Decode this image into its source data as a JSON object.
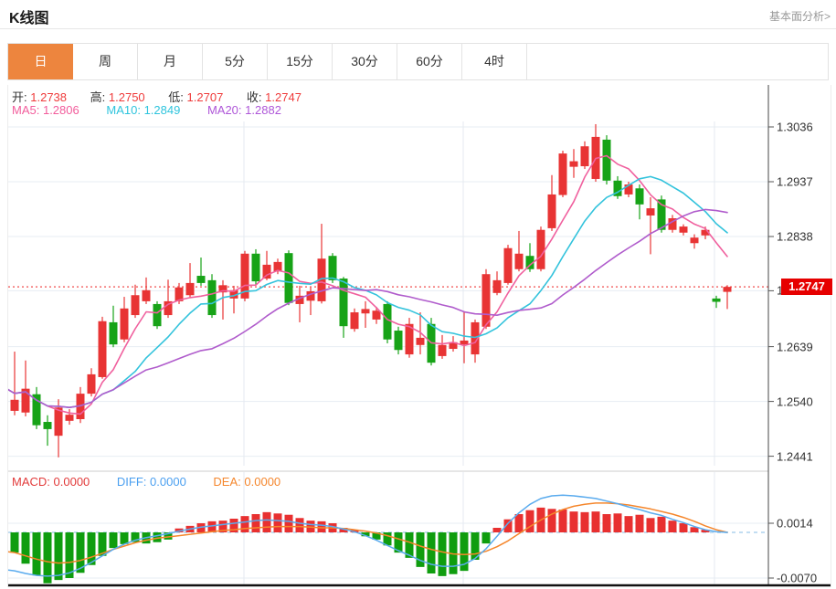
{
  "header": {
    "title": "K线图",
    "link": "基本面分析>"
  },
  "tabs": {
    "items": [
      "日",
      "周",
      "月",
      "5分",
      "15分",
      "30分",
      "60分",
      "4时"
    ],
    "active_index": 0
  },
  "readout": {
    "open_label": "开:",
    "open": "1.2738",
    "high_label": "高:",
    "high": "1.2750",
    "low_label": "低:",
    "low": "1.2707",
    "close_label": "收:",
    "close": "1.2747",
    "ma5_label": "MA5:",
    "ma5": "1.2806",
    "ma10_label": "MA10:",
    "ma10": "1.2849",
    "ma20_label": "MA20:",
    "ma20": "1.2882"
  },
  "macd_readout": {
    "macd_label": "MACD:",
    "macd": "0.0000",
    "diff_label": "DIFF:",
    "diff": "0.0000",
    "dea_label": "DEA:",
    "dea": "0.0000"
  },
  "axis": {
    "main_ticks": [
      {
        "label": "1.3036",
        "value": 1.3036
      },
      {
        "label": "1.2937",
        "value": 1.2937
      },
      {
        "label": "1.2838",
        "value": 1.2838
      },
      {
        "label": "1.2740",
        "value": 1.274
      },
      {
        "label": "1.2639",
        "value": 1.2639
      },
      {
        "label": "1.2540",
        "value": 1.254
      },
      {
        "label": "1.2441",
        "value": 1.2441
      }
    ],
    "macd_ticks": [
      {
        "label": "0.0014",
        "value": 0.0014
      },
      {
        "label": "-0.0070",
        "value": -0.007
      }
    ],
    "last_price": {
      "label": "1.2747",
      "value": 1.2747
    }
  },
  "colors": {
    "up": "#e83434",
    "down": "#17a317",
    "ma5": "#f0609e",
    "ma10": "#33c3dc",
    "ma20": "#b05ccc",
    "grid": "#e7edf3",
    "grid_vert": "#e4e9f0",
    "price_line": "#f26a6a",
    "badge": "#e60000",
    "hist_up": "#e83030",
    "hist_down": "#0f9d0f",
    "diff_line": "#5aabee",
    "dea_line": "#f5862b",
    "zero_dash": "#aed2ee",
    "axis_line": "#444",
    "bottom_line": "#111",
    "tab_active": "#ED853E"
  },
  "chart_data": {
    "type": "candlestick+macd",
    "title": "K线图 (daily)",
    "price_axis": {
      "top": 1.3036,
      "bottom": 1.2441,
      "tick_step": 0.0099
    },
    "last_price": 1.2747,
    "ma_periods": [
      5,
      10,
      20
    ],
    "candles_format": [
      "open",
      "high",
      "low",
      "close"
    ],
    "candles": [
      [
        1.2556,
        1.2625,
        1.2513,
        1.2566
      ],
      [
        1.2523,
        1.263,
        1.2515,
        1.2543
      ],
      [
        1.252,
        1.2614,
        1.2513,
        1.2563
      ],
      [
        1.2553,
        1.2566,
        1.249,
        1.2497
      ],
      [
        1.2503,
        1.2515,
        1.246,
        1.249
      ],
      [
        1.2478,
        1.2544,
        1.2439,
        1.2529
      ],
      [
        1.2505,
        1.2526,
        1.2498,
        1.2516
      ],
      [
        1.2508,
        1.2566,
        1.2501,
        1.2554
      ],
      [
        1.2554,
        1.26,
        1.2549,
        1.2589
      ],
      [
        1.2584,
        1.2693,
        1.2581,
        1.2685
      ],
      [
        1.2683,
        1.2713,
        1.2638,
        1.2643
      ],
      [
        1.2652,
        1.2729,
        1.2647,
        1.2708
      ],
      [
        1.2696,
        1.2751,
        1.2691,
        1.2732
      ],
      [
        1.2721,
        1.2764,
        1.2716,
        1.2741
      ],
      [
        1.2716,
        1.2721,
        1.2671,
        1.2676
      ],
      [
        1.2696,
        1.276,
        1.2691,
        1.2721
      ],
      [
        1.2721,
        1.2754,
        1.2716,
        1.2746
      ],
      [
        1.2732,
        1.279,
        1.2727,
        1.2754
      ],
      [
        1.2767,
        1.28,
        1.2749,
        1.2754
      ],
      [
        1.2759,
        1.277,
        1.2691,
        1.2696
      ],
      [
        1.2737,
        1.2759,
        1.2688,
        1.275
      ],
      [
        1.2726,
        1.2749,
        1.2699,
        1.2741
      ],
      [
        1.2726,
        1.2812,
        1.2721,
        1.2807
      ],
      [
        1.2807,
        1.2815,
        1.2751,
        1.2757
      ],
      [
        1.2762,
        1.2812,
        1.2759,
        1.2787
      ],
      [
        1.2775,
        1.2798,
        1.277,
        1.2792
      ],
      [
        1.2808,
        1.2813,
        1.2714,
        1.2718
      ],
      [
        1.2716,
        1.2749,
        1.2683,
        1.2731
      ],
      [
        1.2722,
        1.2746,
        1.2696,
        1.2739
      ],
      [
        1.2721,
        1.2861,
        1.2717,
        1.2798
      ],
      [
        1.2803,
        1.2808,
        1.2754,
        1.2759
      ],
      [
        1.2762,
        1.2765,
        1.2655,
        1.2676
      ],
      [
        1.2671,
        1.2708,
        1.2666,
        1.2701
      ],
      [
        1.2699,
        1.2721,
        1.2673,
        1.2707
      ],
      [
        1.2688,
        1.2711,
        1.268,
        1.2704
      ],
      [
        1.2716,
        1.2721,
        1.2645,
        1.2652
      ],
      [
        1.2668,
        1.2675,
        1.2625,
        1.2633
      ],
      [
        1.2625,
        1.2691,
        1.2619,
        1.268
      ],
      [
        1.2642,
        1.2701,
        1.2625,
        1.2655
      ],
      [
        1.268,
        1.2691,
        1.2605,
        1.261
      ],
      [
        1.2622,
        1.266,
        1.2617,
        1.2642
      ],
      [
        1.2635,
        1.2658,
        1.263,
        1.2647
      ],
      [
        1.2643,
        1.2703,
        1.2609,
        1.265
      ],
      [
        1.2625,
        1.2688,
        1.261,
        1.2683
      ],
      [
        1.2675,
        1.2779,
        1.2671,
        1.277
      ],
      [
        1.2736,
        1.2775,
        1.2732,
        1.2759
      ],
      [
        1.2754,
        1.2823,
        1.2751,
        1.2817
      ],
      [
        1.2779,
        1.2848,
        1.2775,
        1.2807
      ],
      [
        1.2803,
        1.2826,
        1.2774,
        1.2779
      ],
      [
        1.2779,
        1.2856,
        1.2775,
        1.285
      ],
      [
        1.2853,
        1.2949,
        1.2848,
        1.2914
      ],
      [
        1.2913,
        1.2993,
        1.2909,
        1.2988
      ],
      [
        1.2964,
        1.2996,
        1.2944,
        1.2974
      ],
      [
        1.2965,
        1.301,
        1.296,
        1.3001
      ],
      [
        1.2942,
        1.3041,
        1.2937,
        1.3018
      ],
      [
        1.3013,
        1.3021,
        1.2932,
        1.2939
      ],
      [
        1.2939,
        1.2947,
        1.2906,
        1.2911
      ],
      [
        1.2914,
        1.2937,
        1.2909,
        1.2932
      ],
      [
        1.2925,
        1.2932,
        1.2869,
        1.2896
      ],
      [
        1.2876,
        1.2909,
        1.2806,
        1.2889
      ],
      [
        1.2905,
        1.2912,
        1.2845,
        1.285
      ],
      [
        1.285,
        1.2877,
        1.2845,
        1.2871
      ],
      [
        1.2845,
        1.286,
        1.284,
        1.2856
      ],
      [
        1.2826,
        1.2842,
        1.2816,
        1.2836
      ],
      [
        1.284,
        1.2856,
        1.2833,
        1.285
      ],
      [
        1.2726,
        1.2731,
        1.2709,
        1.272
      ],
      [
        1.2738,
        1.275,
        1.2707,
        1.2747
      ]
    ],
    "macd": {
      "axis_range": [
        0.0014,
        -0.007
      ],
      "diff": [
        -0.0057,
        -0.0059,
        -0.0063,
        -0.0066,
        -0.0067,
        -0.0066,
        -0.0062,
        -0.0055,
        -0.0046,
        -0.0036,
        -0.0026,
        -0.0018,
        -0.0012,
        -0.0008,
        -0.0005,
        -0.0002,
        0.0002,
        0.0005,
        0.0008,
        0.001,
        0.0012,
        0.0014,
        0.0016,
        0.0018,
        0.0019,
        0.0018,
        0.0017,
        0.0014,
        0.0012,
        0.0011,
        0.0009,
        0.0005,
        0.0001,
        -0.0005,
        -0.0012,
        -0.002,
        -0.0028,
        -0.0035,
        -0.0043,
        -0.0049,
        -0.0052,
        -0.0052,
        -0.0049,
        -0.004,
        -0.0025,
        -0.0006,
        0.0014,
        0.003,
        0.0043,
        0.0052,
        0.0056,
        0.0057,
        0.0056,
        0.0054,
        0.0052,
        0.0048,
        0.0044,
        0.0039,
        0.0035,
        0.003,
        0.0026,
        0.002,
        0.0015,
        0.0009,
        0.0004,
        0.0001,
        0.0
      ],
      "dea": [
        -0.0029,
        -0.0031,
        -0.0036,
        -0.0041,
        -0.0045,
        -0.0047,
        -0.0046,
        -0.0043,
        -0.0038,
        -0.0032,
        -0.0026,
        -0.0021,
        -0.0016,
        -0.0012,
        -0.0009,
        -0.0007,
        -0.0005,
        -0.0003,
        -0.0001,
        0.0001,
        0.0003,
        0.0004,
        0.0006,
        0.0007,
        0.0008,
        0.0009,
        0.0009,
        0.0009,
        0.0008,
        0.0007,
        0.0007,
        0.0006,
        0.0004,
        0.0002,
        -0.0001,
        -0.0005,
        -0.001,
        -0.0015,
        -0.0021,
        -0.0026,
        -0.003,
        -0.0033,
        -0.0034,
        -0.0033,
        -0.0029,
        -0.0022,
        -0.0013,
        -0.0002,
        0.0009,
        0.0019,
        0.0028,
        0.0035,
        0.004,
        0.0043,
        0.0045,
        0.0045,
        0.0044,
        0.0042,
        0.0039,
        0.0036,
        0.0032,
        0.0028,
        0.0023,
        0.0017,
        0.001,
        0.0004,
        0.0
      ],
      "hist": [
        -0.0028,
        -0.0031,
        -0.0048,
        -0.0066,
        -0.0078,
        -0.0073,
        -0.007,
        -0.0062,
        -0.005,
        -0.0036,
        -0.0024,
        -0.0018,
        -0.0015,
        -0.0017,
        -0.0015,
        -0.0011,
        0.0006,
        0.001,
        0.0014,
        0.0017,
        0.0018,
        0.0021,
        0.0025,
        0.0028,
        0.0031,
        0.0029,
        0.0027,
        0.0022,
        0.0018,
        0.0017,
        0.0014,
        0.0007,
        0.0004,
        -0.0006,
        -0.0011,
        -0.002,
        -0.0031,
        -0.0039,
        -0.0053,
        -0.0063,
        -0.0067,
        -0.0064,
        -0.0059,
        -0.0042,
        -0.0017,
        0.0007,
        0.002,
        0.0028,
        0.0034,
        0.0038,
        0.0036,
        0.0035,
        0.0032,
        0.0031,
        0.0032,
        0.0028,
        0.0029,
        0.0025,
        0.0027,
        0.0022,
        0.0024,
        0.0018,
        0.0014,
        0.0008,
        0.0004,
        0.0,
        0.0
      ]
    }
  }
}
